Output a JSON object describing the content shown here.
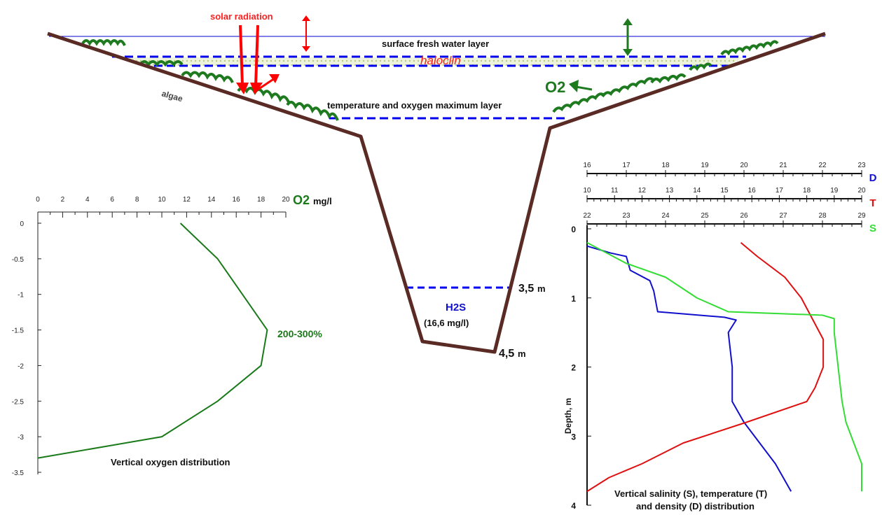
{
  "labels": {
    "solar_radiation": "solar radiation",
    "surface_layer": "surface fresh water layer",
    "halocline": "haloclin",
    "algae": "algae",
    "temp_oxygen_layer": "temperature and oxygen maximum layer",
    "o2_symbol": "O2",
    "h2s_symbol": "H2S",
    "h2s_conc": "(16,6 mg/l)",
    "depth_35": "3,5",
    "depth_45": "4,5",
    "unit_m": "m"
  },
  "colors": {
    "basin": "#5a2b24",
    "solar": "#ff0000",
    "water_line": "#0000cc",
    "dashed": "#0000ee",
    "algae": "#1e7a1e",
    "oxygen_line": "#1a7a1a",
    "density": "#1010cc",
    "temperature": "#e01010",
    "salinity": "#33dd33"
  },
  "chart_data": [
    {
      "type": "line",
      "title": "Vertical oxygen distribution",
      "x_axis_label": "mg/l",
      "x_axis_symbol": "O2",
      "x_ticks": [
        0,
        2,
        4,
        6,
        8,
        10,
        12,
        14,
        16,
        18,
        20
      ],
      "y_ticks": [
        "0",
        "-0.5",
        "-1",
        "-1.5",
        "-2",
        "-2.5",
        "-3",
        "-3.5"
      ],
      "xlim": [
        0,
        20
      ],
      "ylim": [
        -3.5,
        0
      ],
      "annotation": "200-300%",
      "series": [
        {
          "x": [
            11.5,
            14.5,
            16.5,
            18.5,
            18,
            14.5,
            10,
            0
          ],
          "y": [
            0,
            -0.5,
            -1,
            -1.5,
            -2,
            -2.5,
            -3,
            -3.3
          ]
        }
      ]
    },
    {
      "type": "line",
      "title_lines": [
        "Vertical salinity (S), temperature (T)",
        "and density (D) distribution"
      ],
      "ylabel": "Depth, m",
      "y_ticks": [
        "0",
        "1",
        "2",
        "3",
        "4"
      ],
      "ylim": [
        0,
        4
      ],
      "axes": [
        {
          "letter": "D",
          "ticks": [
            "16",
            "17",
            "18",
            "19",
            "20",
            "21",
            "22",
            "23"
          ],
          "range": [
            16,
            23
          ]
        },
        {
          "letter": "T",
          "ticks": [
            "10",
            "11",
            "12",
            "13",
            "14",
            "15",
            "16",
            "17",
            "18",
            "19",
            "20"
          ],
          "range": [
            10,
            20
          ]
        },
        {
          "letter": "S",
          "ticks": [
            "22",
            "23",
            "24",
            "25",
            "26",
            "27",
            "28",
            "29"
          ],
          "range": [
            22,
            29
          ]
        }
      ],
      "series": [
        {
          "axis": "D",
          "depth": [
            0.25,
            0.35,
            0.4,
            0.6,
            0.75,
            0.9,
            1.2,
            1.28,
            1.32,
            1.5,
            2.0,
            2.5,
            2.8,
            3.1,
            3.4,
            3.6,
            3.8
          ],
          "values": [
            16.0,
            16.6,
            17.0,
            17.1,
            17.6,
            17.7,
            17.8,
            19.5,
            19.8,
            19.6,
            19.7,
            19.7,
            20.0,
            20.4,
            20.8,
            21.0,
            21.2
          ]
        },
        {
          "axis": "T",
          "depth": [
            0.2,
            0.4,
            0.7,
            1.0,
            1.3,
            1.6,
            2.0,
            2.3,
            2.5,
            2.8,
            3.1,
            3.4,
            3.6,
            3.8
          ],
          "values": [
            15.6,
            16.2,
            17.2,
            17.8,
            18.2,
            18.6,
            18.6,
            18.3,
            18.0,
            15.8,
            13.5,
            12.0,
            10.8,
            10.0
          ]
        },
        {
          "axis": "S",
          "depth": [
            0.2,
            0.5,
            0.7,
            1.0,
            1.2,
            1.25,
            1.3,
            1.5,
            2.0,
            2.5,
            2.8,
            3.1,
            3.4,
            3.6,
            3.8
          ],
          "values": [
            22.0,
            23.0,
            24.0,
            24.8,
            25.6,
            28.0,
            28.3,
            28.3,
            28.4,
            28.5,
            28.6,
            28.8,
            29.0,
            29.0,
            29.0
          ]
        }
      ]
    }
  ]
}
